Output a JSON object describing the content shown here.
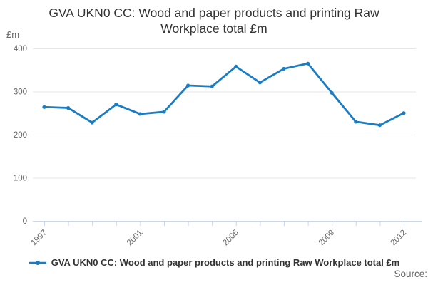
{
  "header": {
    "title": "GVA UKN0 CC: Wood and paper products and printing Raw Workplace total £m"
  },
  "y_unit": "£m",
  "legend": {
    "label": "GVA UKN0 CC: Wood and paper products and printing Raw Workplace total £m"
  },
  "footer": {
    "source_label": "Source:"
  },
  "colors": {
    "series": "#1a7dc3",
    "axis_line": "#ccd6eb",
    "gridline": "#e6e6e6",
    "tick_label": "#666666",
    "title_text": "#333333"
  },
  "chart_data": {
    "type": "line",
    "title": "GVA UKN0 CC: Wood and paper products and printing Raw Workplace total £m",
    "xlabel": "",
    "ylabel": "£m",
    "ylim": [
      0,
      400
    ],
    "y_ticks": [
      0,
      100,
      200,
      300,
      400
    ],
    "grid": true,
    "legend_position": "bottom",
    "x": [
      1997,
      1998,
      1999,
      2000,
      2001,
      2002,
      2003,
      2004,
      2005,
      2006,
      2007,
      2008,
      2009,
      2010,
      2011,
      2012
    ],
    "x_tick_labels": [
      1997,
      2001,
      2005,
      2009,
      2012
    ],
    "series": [
      {
        "name": "GVA UKN0 CC: Wood and paper products and printing Raw Workplace total £m",
        "values": [
          264,
          262,
          228,
          270,
          248,
          253,
          314,
          312,
          358,
          321,
          353,
          365,
          297,
          230,
          222,
          250
        ]
      }
    ]
  }
}
